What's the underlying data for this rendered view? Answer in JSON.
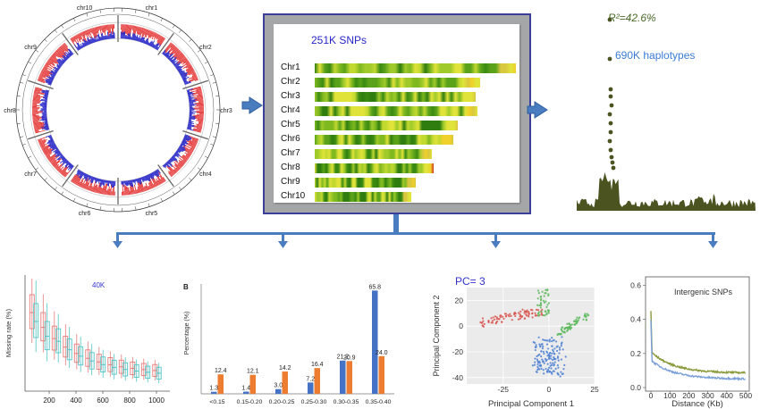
{
  "center": {
    "title": "251K SNPs",
    "chromosomes": [
      {
        "label": "Chr1",
        "length": 1.0
      },
      {
        "label": "Chr2",
        "length": 0.82
      },
      {
        "label": "Chr3",
        "length": 0.8
      },
      {
        "label": "Chr4",
        "length": 0.81
      },
      {
        "label": "Chr5",
        "length": 0.71
      },
      {
        "label": "Chr6",
        "length": 0.69
      },
      {
        "label": "Chr7",
        "length": 0.58
      },
      {
        "label": "Chr8",
        "length": 0.59
      },
      {
        "label": "Chr9",
        "length": 0.5
      },
      {
        "label": "Chr10",
        "length": 0.48
      }
    ]
  },
  "circos": {
    "chromosomes": [
      "chr1",
      "chr2",
      "chr3",
      "chr4",
      "chr5",
      "chr6",
      "chr7",
      "chr8",
      "chr9",
      "chr10"
    ],
    "colors": {
      "outer": "#e33030",
      "inner": "#2424c8"
    }
  },
  "manhattan": {
    "r2_label": "R²=42.6%",
    "haplotypes_label": "690K haplotypes",
    "color": "#4b5320"
  },
  "chart_data": [
    {
      "type": "box",
      "title": "40K",
      "xlabel": "",
      "ylabel": "Missing rate (%)",
      "x_ticks": [
        "200",
        "400",
        "600",
        "800",
        "1000"
      ],
      "colors": {
        "a": "#e87a7a",
        "b": "#4fc4c4"
      }
    },
    {
      "type": "bar",
      "panel_label": "B",
      "ylabel": "Percentage (%)",
      "categories": [
        "<0.15",
        "0.15-0.20",
        "0.20-0.25",
        "0.25-0.30",
        "0.30-0.35",
        "0.35-0.40"
      ],
      "series": [
        {
          "values": [
            1.3,
            1.4,
            3.0,
            7.2,
            21.2,
            65.8
          ],
          "color": "#4472c4"
        },
        {
          "values": [
            12.4,
            12.1,
            14.2,
            16.4,
            20.9,
            24.0
          ],
          "color": "#ed7d31"
        }
      ],
      "ylim": [
        0,
        70
      ]
    },
    {
      "type": "scatter",
      "title": "PC= 3",
      "xlabel": "Principal Component 1",
      "ylabel": "Principal Component 2",
      "x_ticks": [
        "-25",
        "0",
        "25"
      ],
      "y_ticks": [
        "20",
        "0",
        "-20",
        "-40"
      ],
      "colors": [
        "#d9534f",
        "#5cb85c",
        "#4a7fd4"
      ]
    },
    {
      "type": "line",
      "title": "Intergenic   SNPs",
      "xlabel": "Distance (Kb)",
      "ylabel": "",
      "x_ticks": [
        "0",
        "100",
        "200",
        "300",
        "400",
        "500"
      ],
      "y_ticks": [
        "0.6",
        "0.4",
        "0.2",
        "0.0"
      ],
      "colors": [
        "#8a9a3a",
        "#7a9fd8"
      ]
    }
  ]
}
